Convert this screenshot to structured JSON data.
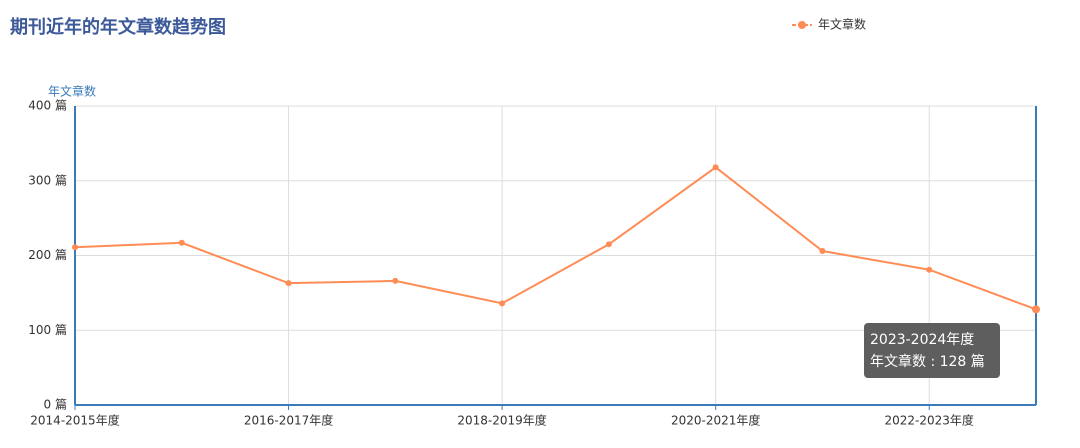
{
  "chart_data": {
    "type": "line",
    "title": "期刊近年的年文章数趋势图",
    "y_axis_label": "年文章数",
    "categories": [
      "2014-2015年度",
      null,
      "2016-2017年度",
      null,
      "2018-2019年度",
      null,
      "2020-2021年度",
      null,
      "2022-2023年度",
      null
    ],
    "series": [
      {
        "name": "年文章数",
        "color": "#ff8c55",
        "values": [
          211,
          217,
          163,
          166,
          136,
          215,
          318,
          206,
          181,
          128
        ]
      }
    ],
    "ylim": [
      0,
      400
    ],
    "yticks": [
      {
        "value": 0,
        "label": "0 篇"
      },
      {
        "value": 100,
        "label": "100 篇"
      },
      {
        "value": 200,
        "label": "200 篇"
      },
      {
        "value": 300,
        "label": "300 篇"
      },
      {
        "value": 400,
        "label": "400 篇"
      }
    ],
    "grid": true,
    "legend": "top-right",
    "tooltip": {
      "category": "2023-2024年度",
      "text": "年文章数 : 128 篇"
    }
  }
}
